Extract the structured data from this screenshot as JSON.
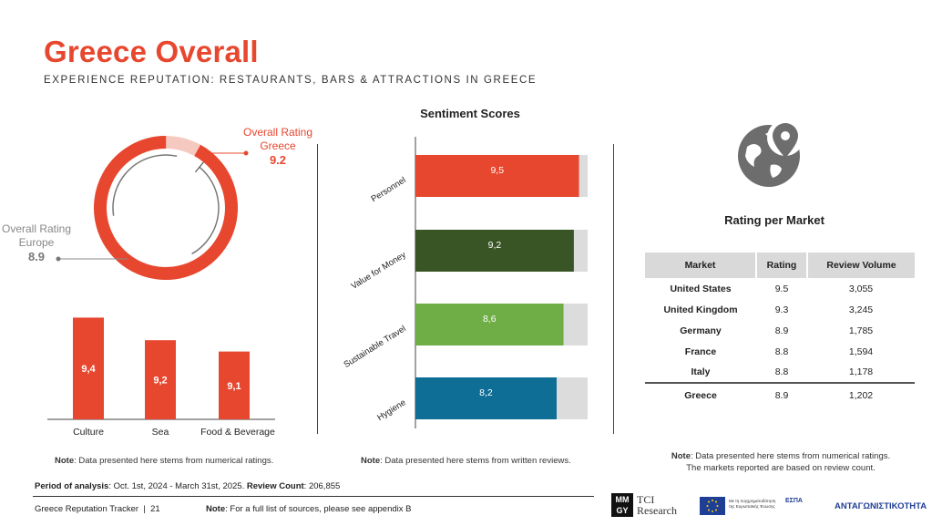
{
  "header": {
    "title": "Greece Overall",
    "subtitle": "EXPERIENCE REPUTATION: RESTAURANTS, BARS & ATTRACTIONS IN GREECE"
  },
  "overall": {
    "greece_label_1": "Overall Rating",
    "greece_label_2": "Greece",
    "greece_value": "9.2",
    "europe_label_1": "Overall Rating",
    "europe_label_2": "Europe",
    "europe_value": "8.9"
  },
  "notes": {
    "left_prefix": "Note",
    "left_text": ": Data presented here stems from numerical ratings.",
    "mid_prefix": "Note",
    "mid_text": ": Data presented here stems from written reviews.",
    "right_prefix": "Note",
    "right_text_1": ": Data presented here stems from numerical ratings.",
    "right_text_2": "The markets reported are based on review count."
  },
  "sentiment": {
    "title": "Sentiment Scores"
  },
  "market": {
    "title": "Rating per Market",
    "headers": [
      "Market",
      "Rating",
      "Review Volume"
    ],
    "rows": [
      [
        "United States",
        "9.5",
        "3,055"
      ],
      [
        "United Kingdom",
        "9.3",
        "3,245"
      ],
      [
        "Germany",
        "8.9",
        "1,785"
      ],
      [
        "France",
        "8.8",
        "1,594"
      ],
      [
        "Italy",
        "8.8",
        "1,178"
      ]
    ],
    "total": [
      "Greece",
      "8.9",
      "1,202"
    ]
  },
  "footer": {
    "period_label": "Period of analysis",
    "period_text": ": Oct. 1st, 2024 - March 31st, 2025. ",
    "review_label": "Review Count",
    "review_text": ": 206,855",
    "tracker": "Greece Reputation Tracker  |  21",
    "note_label": "Note",
    "note_text": ": For a full list of sources, please see appendix B"
  },
  "logos": {
    "tci_box": "MM GY",
    "tci_text_1": "TCI",
    "tci_text_2": "Research",
    "eu_text": "Με τη συγχρηματοδότηση της Ευρωπαϊκής Ένωσης",
    "espa": "ΕΣΠΑ",
    "ant": "ΑΝΤΑΓΩΝΙΣΤΙΚΟΤΗΤΑ"
  },
  "colors": {
    "accent": "#e8472f",
    "light_accent": "#f6c9c0",
    "grey_track": "#dcdcdc",
    "dark_green": "#3a5525",
    "light_green": "#6fae47",
    "teal_blue": "#0e6e96",
    "globe": "#6d6d6d"
  },
  "chart_data": [
    {
      "type": "pie",
      "slices": [
        {
          "label": "Greece",
          "value": 9.2
        },
        {
          "label": "Remainder",
          "value": 0.8
        }
      ],
      "reference": {
        "label": "Europe",
        "value": 8.9
      },
      "max": 10
    },
    {
      "type": "bar",
      "categories": [
        "Culture",
        "Sea",
        "Food & Beverage"
      ],
      "values": [
        9.4,
        9.2,
        9.1
      ],
      "value_labels": [
        "9,4",
        "9,2",
        "9,1"
      ],
      "ylim": [
        8.5,
        9.5
      ]
    },
    {
      "type": "bar",
      "orientation": "horizontal",
      "title": "Sentiment Scores",
      "categories": [
        "Personnel",
        "Value for Money",
        "Sustainable Travel",
        "Hygiene"
      ],
      "values": [
        9.5,
        9.2,
        8.6,
        8.2
      ],
      "value_labels": [
        "9,5",
        "9,2",
        "8,6",
        "8,2"
      ],
      "xlim": [
        0,
        10
      ]
    }
  ]
}
